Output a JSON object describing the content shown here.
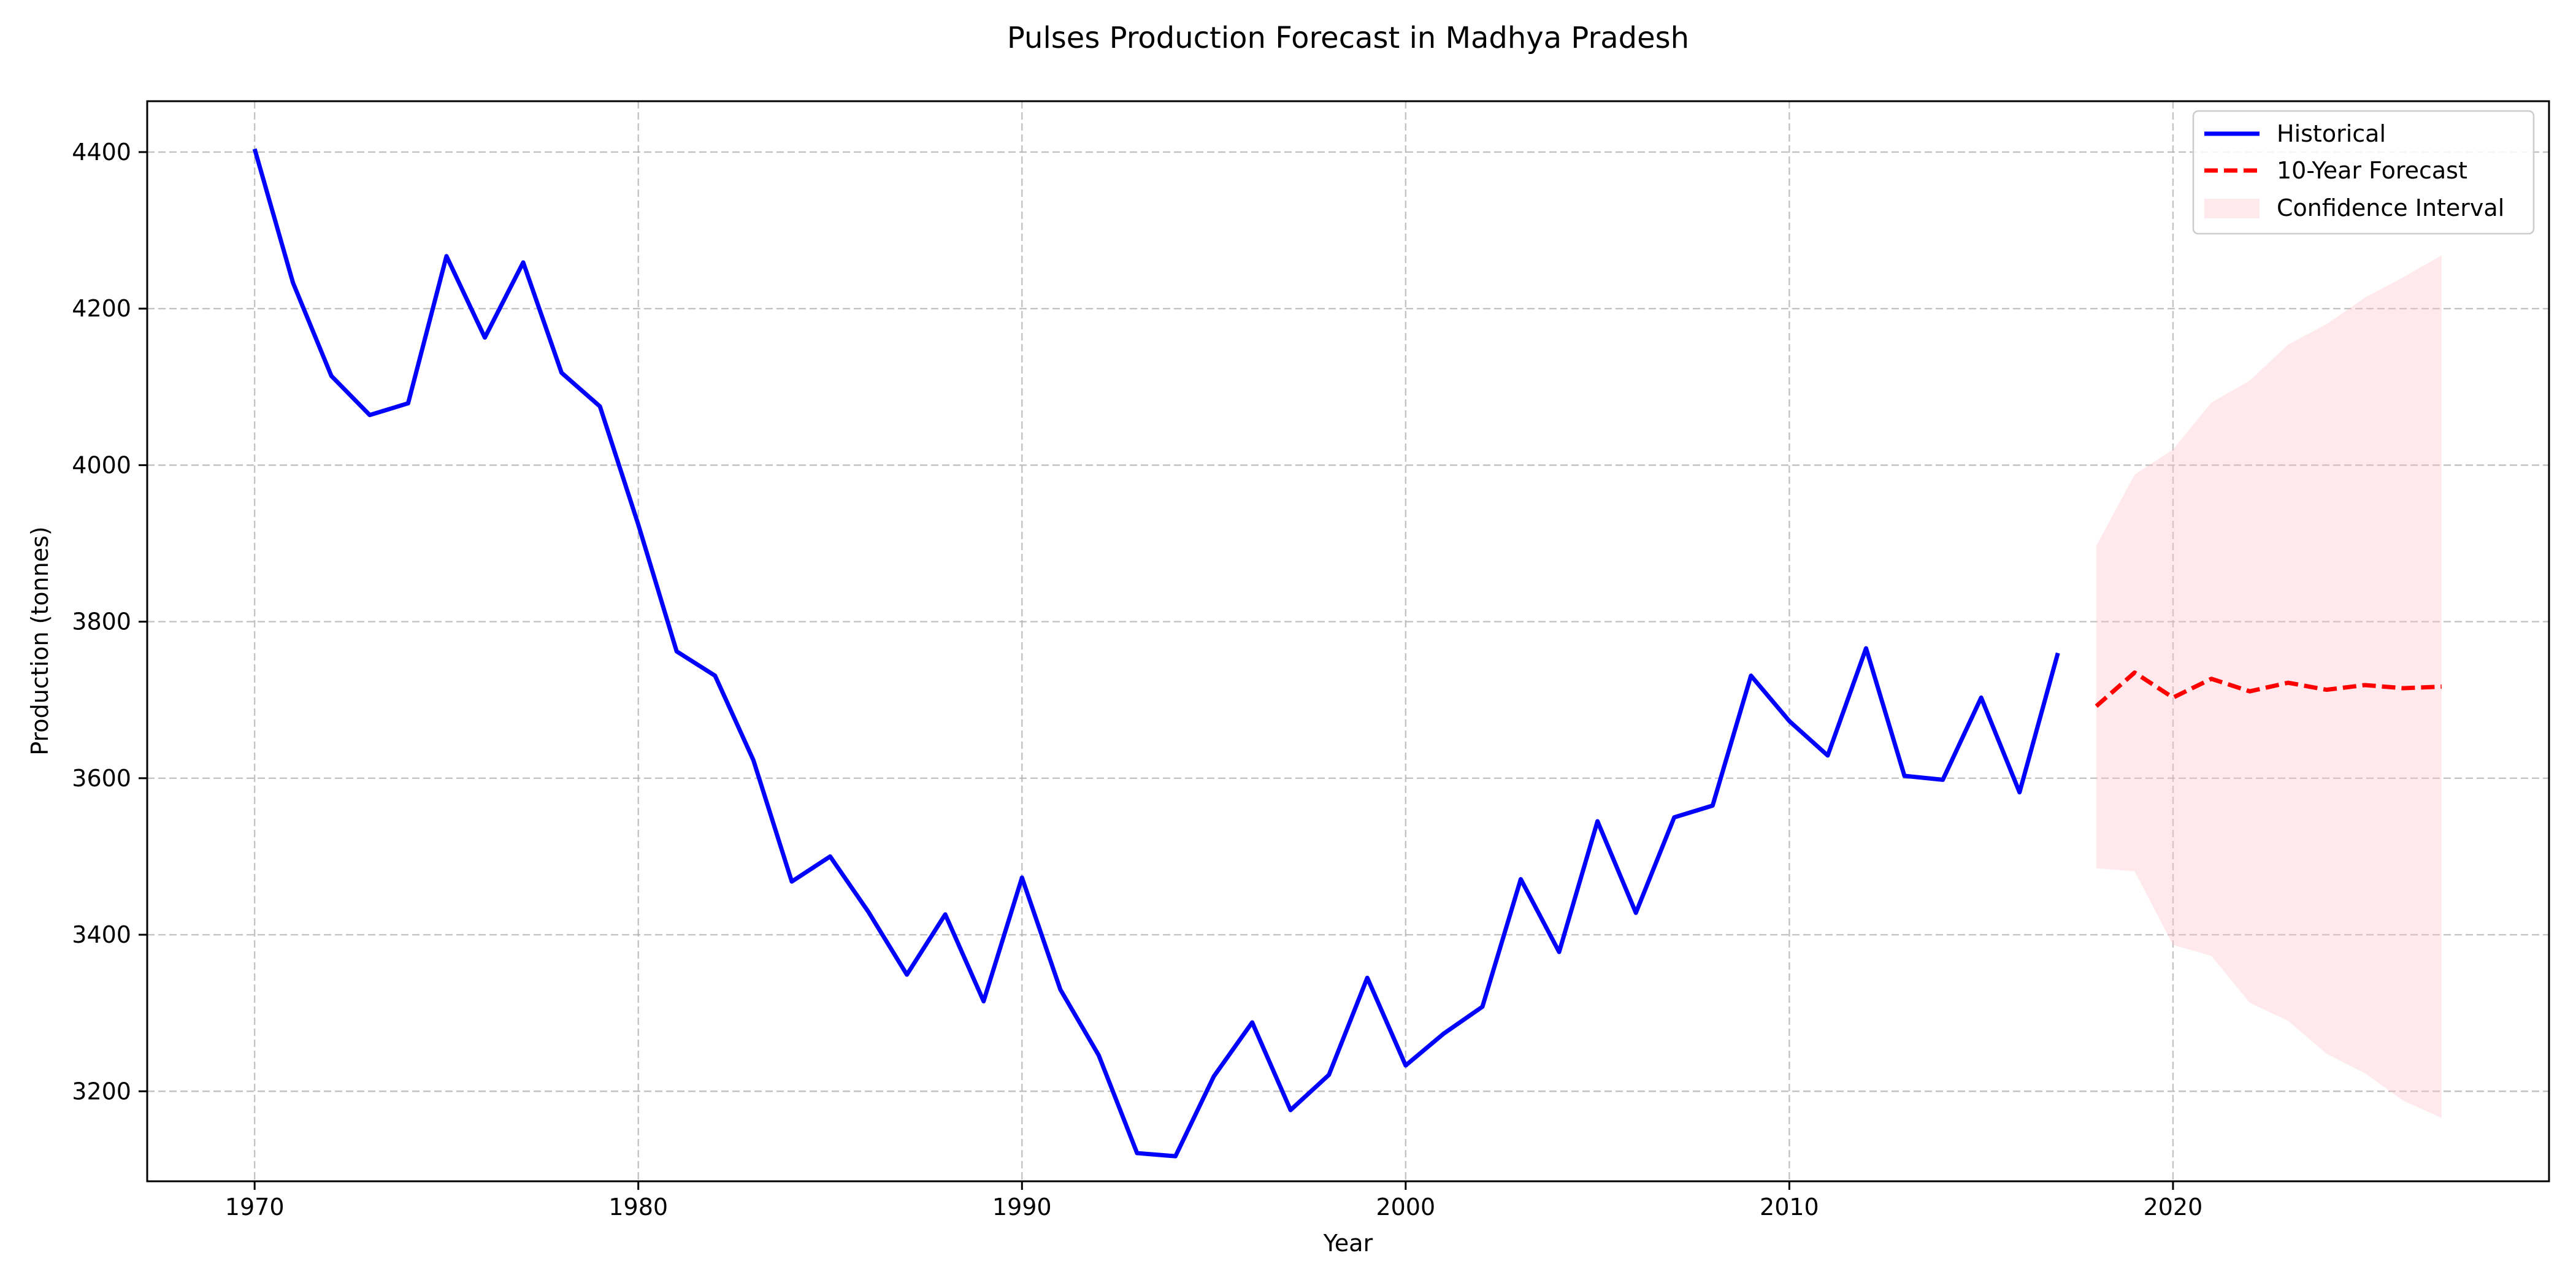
{
  "chart_data": {
    "type": "line",
    "title": "Pulses Production Forecast in Madhya Pradesh",
    "xlabel": "Year",
    "ylabel": "Production (tonnes)",
    "xlim": [
      1967.2,
      2029.8
    ],
    "ylim": [
      3085,
      4465
    ],
    "xticks": [
      1970,
      1980,
      1990,
      2000,
      2010,
      2020
    ],
    "yticks": [
      3200,
      3400,
      3600,
      3800,
      4000,
      4200,
      4400
    ],
    "grid": true,
    "legend_position": "top-right",
    "colors": {
      "historical": "#0000ff",
      "forecast": "#ff0000",
      "confidence": "#ffc0cb"
    },
    "series": [
      {
        "name": "Historical",
        "style": "solid",
        "x": [
          1970,
          1971,
          1972,
          1973,
          1974,
          1975,
          1976,
          1977,
          1978,
          1979,
          1980,
          1981,
          1982,
          1983,
          1984,
          1985,
          1986,
          1987,
          1988,
          1989,
          1990,
          1991,
          1992,
          1993,
          1994,
          1995,
          1996,
          1997,
          1998,
          1999,
          2000,
          2001,
          2002,
          2003,
          2004,
          2005,
          2006,
          2007,
          2008,
          2009,
          2010,
          2011,
          2012,
          2013,
          2014,
          2015,
          2016,
          2017
        ],
        "y": [
          4404,
          4233,
          4114,
          4064,
          4079,
          4267,
          4163,
          4259,
          4118,
          4075,
          3924,
          3762,
          3731,
          3623,
          3468,
          3500,
          3429,
          3349,
          3426,
          3315,
          3473,
          3330,
          3246,
          3121,
          3117,
          3219,
          3288,
          3176,
          3221,
          3345,
          3233,
          3274,
          3308,
          3471,
          3378,
          3545,
          3428,
          3550,
          3565,
          3731,
          3673,
          3629,
          3766,
          3603,
          3598,
          3703,
          3582,
          3760
        ]
      },
      {
        "name": "10-Year Forecast",
        "style": "dashed",
        "x": [
          2018,
          2019,
          2020,
          2021,
          2022,
          2023,
          2024,
          2025,
          2026,
          2027
        ],
        "y": [
          3692,
          3735,
          3703,
          3727,
          3711,
          3722,
          3713,
          3719,
          3715,
          3717
        ]
      }
    ],
    "confidence_interval": {
      "name": "Confidence Interval",
      "x": [
        2018,
        2019,
        2020,
        2021,
        2022,
        2023,
        2024,
        2025,
        2026,
        2027
      ],
      "lower": [
        3485,
        3481,
        3387,
        3373,
        3313,
        3290,
        3248,
        3223,
        3188,
        3166
      ],
      "upper": [
        3897,
        3988,
        4020,
        4080,
        4108,
        4154,
        4180,
        4214,
        4240,
        4268
      ]
    }
  }
}
